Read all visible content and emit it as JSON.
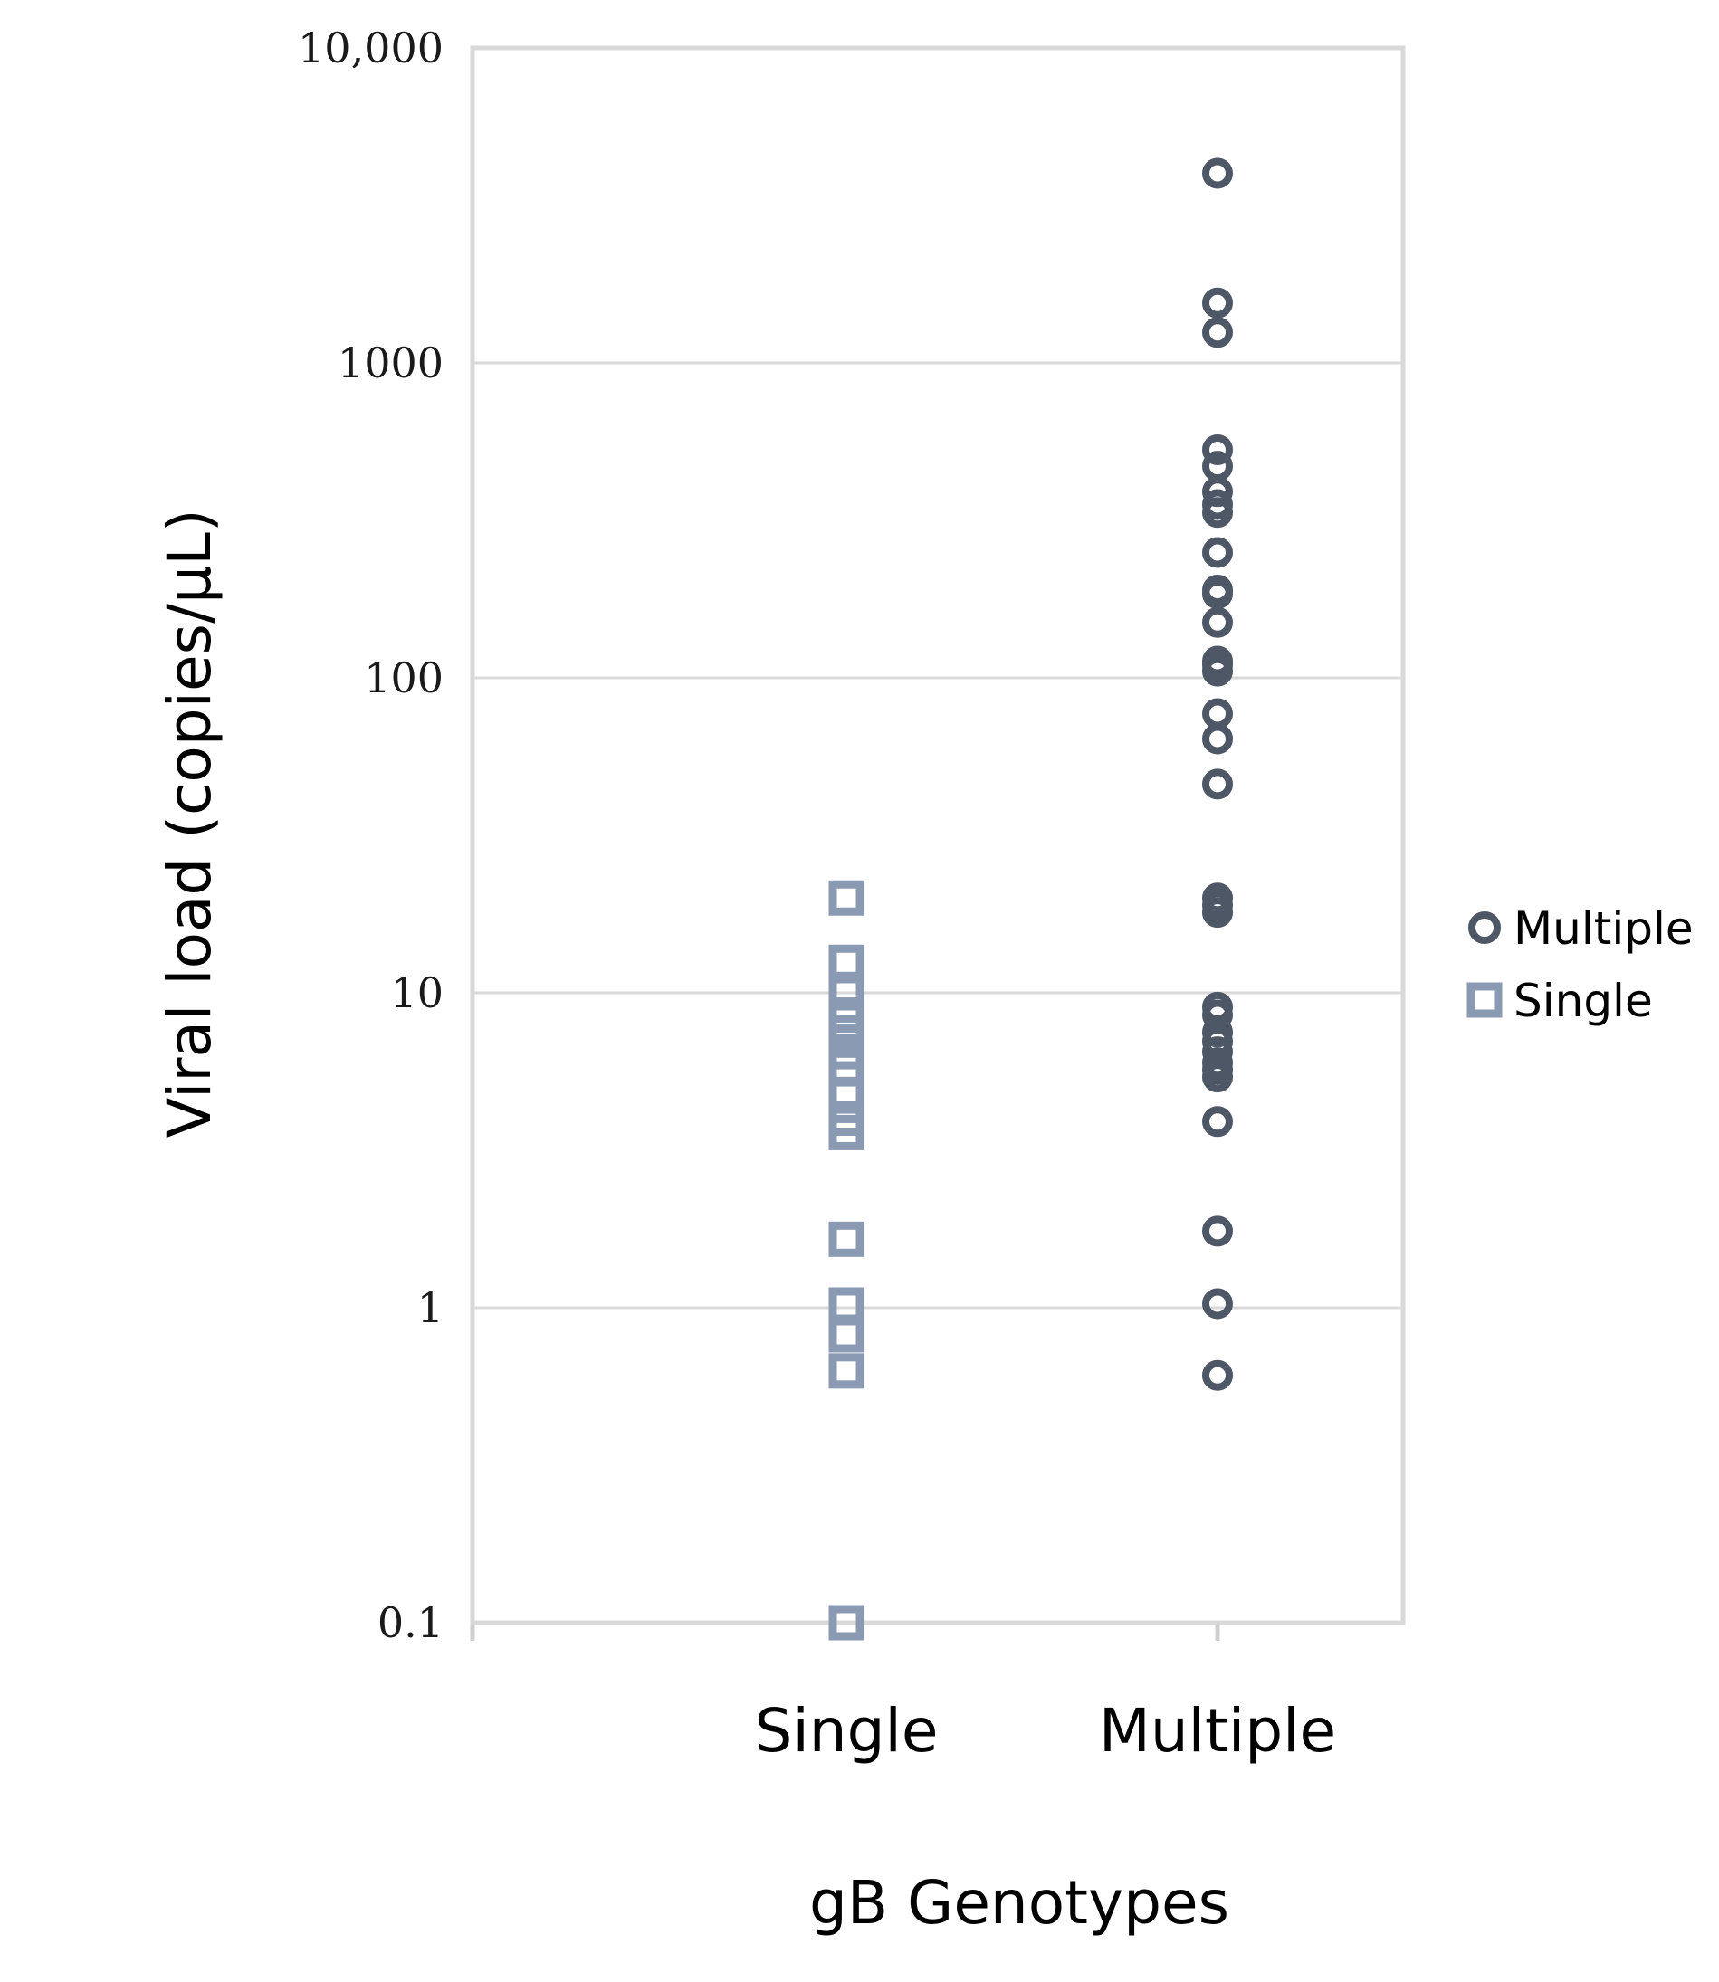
{
  "chart_data": {
    "type": "scatter",
    "xlabel": "gB Genotypes",
    "ylabel": "Viral load (copies/μL)",
    "y_scale": "log",
    "ylim": [
      0.1,
      10000
    ],
    "yticks": [
      {
        "value": 10000,
        "label": "10,000"
      },
      {
        "value": 1000,
        "label": "1000"
      },
      {
        "value": 100,
        "label": "100"
      },
      {
        "value": 10,
        "label": "10"
      },
      {
        "value": 1,
        "label": "1"
      },
      {
        "value": 0.1,
        "label": "0.1"
      }
    ],
    "categories": [
      "Single",
      "Multiple"
    ],
    "grid": true,
    "legend": "right",
    "series": [
      {
        "name": "Multiple",
        "category": "Multiple",
        "marker": "circle",
        "color": "#4d5766",
        "values": [
          4000,
          1550,
          1250,
          530,
          470,
          390,
          355,
          335,
          250,
          190,
          185,
          150,
          113,
          110,
          105,
          77,
          64,
          46,
          20,
          19,
          18,
          9,
          8.5,
          7.5,
          7,
          6.5,
          6,
          5.7,
          5.4,
          3.9,
          1.75,
          1.03,
          0.61
        ]
      },
      {
        "name": "Single",
        "category": "Single",
        "marker": "square",
        "color": "#8a9ab2",
        "values": [
          20,
          12.5,
          10,
          8.5,
          7.5,
          6.5,
          5.8,
          4.7,
          4.0,
          3.6,
          1.65,
          1.02,
          0.82,
          0.63,
          0.1
        ]
      }
    ]
  }
}
